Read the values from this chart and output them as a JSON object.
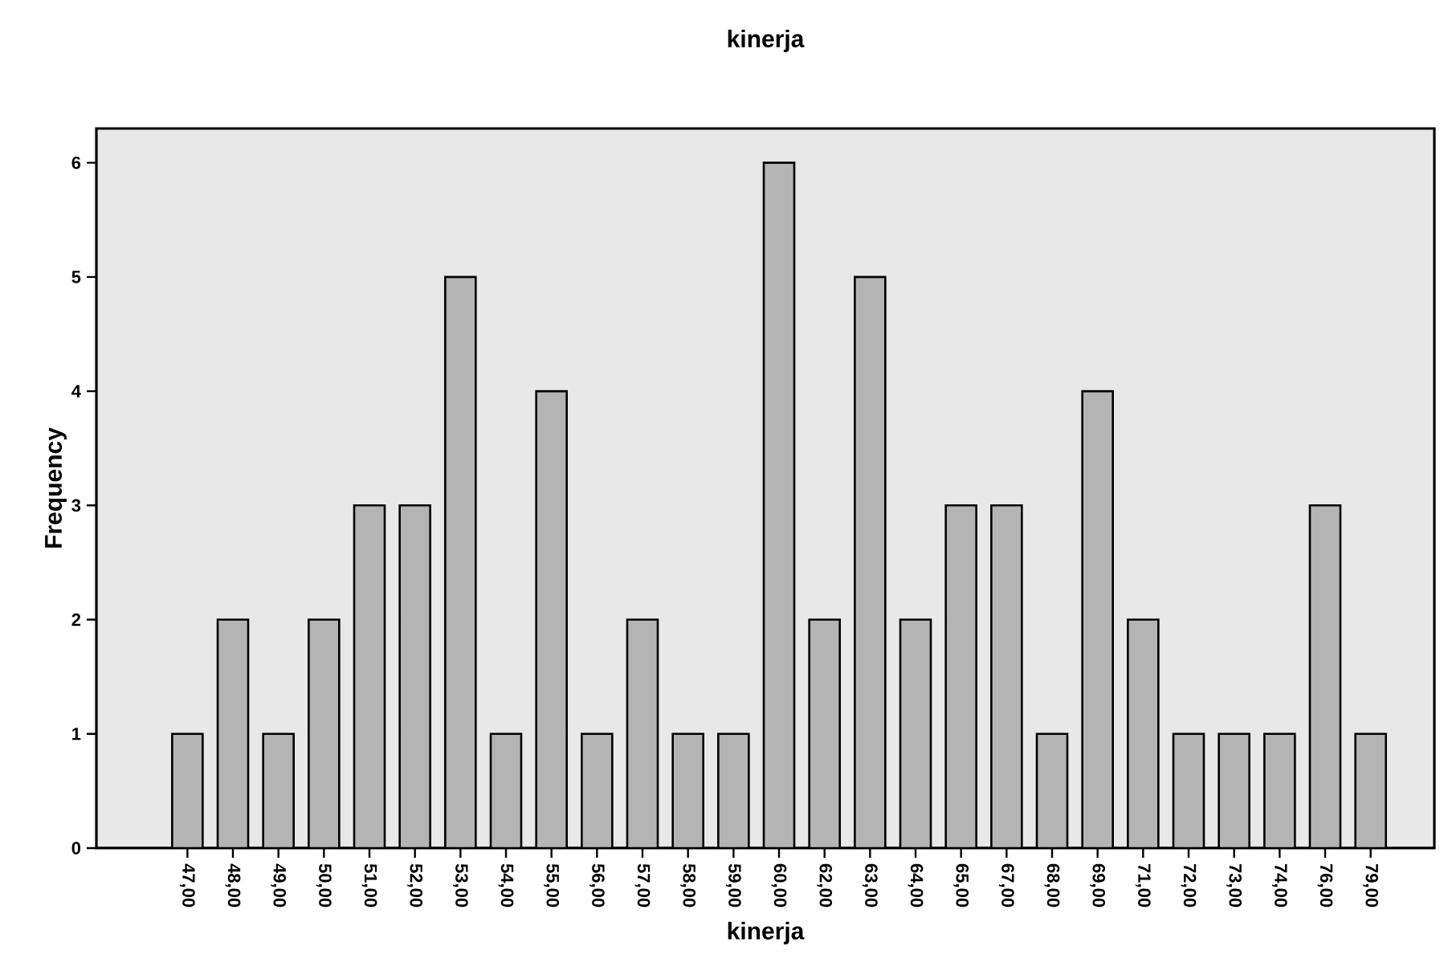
{
  "chart_data": {
    "type": "bar",
    "title": "kinerja",
    "xlabel": "kinerja",
    "ylabel": "Frequency",
    "categories": [
      "47,00",
      "48,00",
      "49,00",
      "50,00",
      "51,00",
      "52,00",
      "53,00",
      "54,00",
      "55,00",
      "56,00",
      "57,00",
      "58,00",
      "59,00",
      "60,00",
      "62,00",
      "63,00",
      "64,00",
      "65,00",
      "67,00",
      "68,00",
      "69,00",
      "71,00",
      "72,00",
      "73,00",
      "74,00",
      "76,00",
      "79,00"
    ],
    "values": [
      1,
      2,
      1,
      2,
      3,
      3,
      5,
      1,
      4,
      1,
      2,
      1,
      1,
      6,
      2,
      5,
      2,
      3,
      3,
      1,
      4,
      2,
      1,
      1,
      1,
      3,
      1
    ],
    "color": "#b4b4b4",
    "ylim": [
      0,
      6.3
    ],
    "yticks": [
      0,
      1,
      2,
      3,
      4,
      5,
      6
    ],
    "grid": false
  }
}
